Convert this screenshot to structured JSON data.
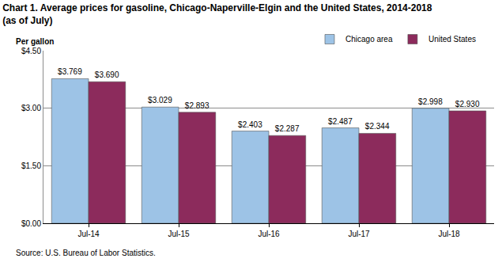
{
  "chart_data": {
    "type": "bar",
    "title": [
      "Chart 1. Average prices for gasoline, Chicago-Naperville-Elgin and the United States, 2014-2018",
      "(as of July)"
    ],
    "y_label": "Per gallon",
    "source": "Source: U.S. Bureau of Labor Statistics.",
    "categories": [
      "Jul-14",
      "Jul-15",
      "Jul-16",
      "Jul-17",
      "Jul-18"
    ],
    "series": [
      {
        "name": "Chicago area",
        "color": "#9dc3e6",
        "values": [
          3.769,
          3.029,
          2.403,
          2.487,
          2.998
        ],
        "value_labels": [
          "$3.769",
          "$3.029",
          "$2.403",
          "$2.487",
          "$2.998"
        ]
      },
      {
        "name": "United States",
        "color": "#8c2b5c",
        "values": [
          3.69,
          2.893,
          2.287,
          2.344,
          2.93
        ],
        "value_labels": [
          "$3.690",
          "$2.893",
          "$2.287",
          "$2.344",
          "$2.930"
        ]
      }
    ],
    "ylim": [
      0,
      4.5
    ],
    "yticks": [
      {
        "value": 0,
        "label": "$0.00"
      },
      {
        "value": 1.5,
        "label": "$1.50"
      },
      {
        "value": 3,
        "label": "$3.00"
      },
      {
        "value": 4.5,
        "label": "$4.50"
      }
    ],
    "grid": true,
    "data_labels": true,
    "legend": "top right"
  }
}
